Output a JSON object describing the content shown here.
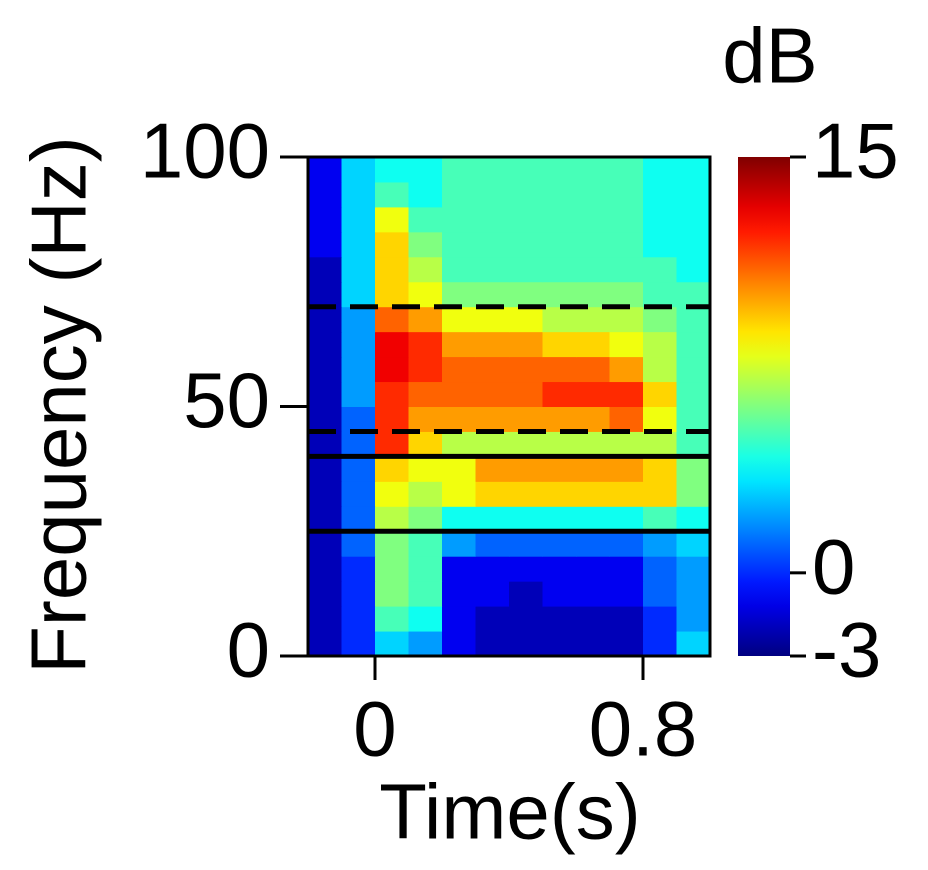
{
  "chart_data": {
    "type": "heatmap",
    "xlabel": "Time(s)",
    "ylabel": "Frequency (Hz)",
    "colorbar_label": "dB",
    "colormap": "jet",
    "xbins": [
      -0.2,
      -0.1,
      0,
      0.1,
      0.2,
      0.3,
      0.4,
      0.5,
      0.6,
      0.7,
      0.8,
      0.9,
      1.0
    ],
    "ybins": [
      0,
      5,
      10,
      15,
      20,
      25,
      30,
      35,
      40,
      45,
      50,
      55,
      60,
      65,
      70,
      75,
      80,
      85,
      90,
      95,
      100
    ],
    "z": [
      [
        -2,
        0,
        3,
        2,
        -1,
        -2,
        -2,
        -2,
        -2,
        -2,
        0,
        3
      ],
      [
        -2,
        0,
        5,
        4,
        -1,
        -2,
        -2,
        -2,
        -2,
        -2,
        0,
        2
      ],
      [
        -2,
        0,
        6,
        5,
        -1,
        -1,
        -2,
        -1,
        -1,
        -1,
        1,
        2
      ],
      [
        -2,
        0,
        6,
        5,
        -1,
        -1,
        -1,
        -1,
        -1,
        -1,
        1,
        2
      ],
      [
        -2,
        1,
        6,
        5,
        2,
        1,
        1,
        1,
        1,
        1,
        2,
        3
      ],
      [
        -2,
        1,
        7,
        6,
        4,
        4,
        4,
        4,
        4,
        4,
        5,
        4
      ],
      [
        -2,
        1,
        8,
        7,
        8,
        9,
        9,
        9,
        9,
        9,
        9,
        6
      ],
      [
        -2,
        1,
        9,
        8,
        8,
        10,
        10,
        10,
        10,
        10,
        9,
        6
      ],
      [
        -2,
        1,
        12,
        9,
        7,
        7,
        7,
        7,
        7,
        7,
        7,
        5
      ],
      [
        -2,
        1,
        12,
        10,
        10,
        10,
        10,
        10,
        10,
        11,
        8,
        5
      ],
      [
        -2,
        2,
        12,
        11,
        11,
        11,
        11,
        12,
        12,
        12,
        9,
        5
      ],
      [
        -2,
        2,
        13,
        12,
        11,
        11,
        11,
        11,
        11,
        10,
        7,
        5
      ],
      [
        -2,
        2,
        13,
        12,
        10,
        10,
        10,
        9,
        9,
        8,
        7,
        5
      ],
      [
        -2,
        2,
        11,
        10,
        8,
        8,
        8,
        7,
        7,
        7,
        6,
        5
      ],
      [
        -2,
        3,
        9,
        8,
        6,
        6,
        6,
        6,
        6,
        6,
        5,
        5
      ],
      [
        -2,
        3,
        9,
        7,
        5,
        5,
        5,
        5,
        5,
        5,
        5,
        4
      ],
      [
        -1,
        3,
        9,
        6,
        5,
        5,
        5,
        5,
        5,
        5,
        4,
        4
      ],
      [
        -1,
        3,
        8,
        5,
        5,
        5,
        5,
        5,
        5,
        5,
        4,
        4
      ],
      [
        -1,
        3,
        5,
        4,
        5,
        5,
        5,
        5,
        5,
        5,
        4,
        4
      ],
      [
        -1,
        3,
        4,
        4,
        5,
        5,
        5,
        5,
        5,
        5,
        4,
        4
      ]
    ],
    "xlim": [
      -0.2,
      1.0
    ],
    "xticks": [
      0,
      0.8
    ],
    "ylim": [
      0,
      100
    ],
    "yticks": [
      0,
      50,
      100
    ],
    "clim": [
      -3,
      15
    ],
    "cticks": [
      -3,
      0,
      15
    ],
    "hlines": [
      {
        "value": 70,
        "style": "dashed"
      },
      {
        "value": 45,
        "style": "dashed"
      },
      {
        "value": 40,
        "style": "solid"
      },
      {
        "value": 25,
        "style": "solid"
      }
    ]
  }
}
